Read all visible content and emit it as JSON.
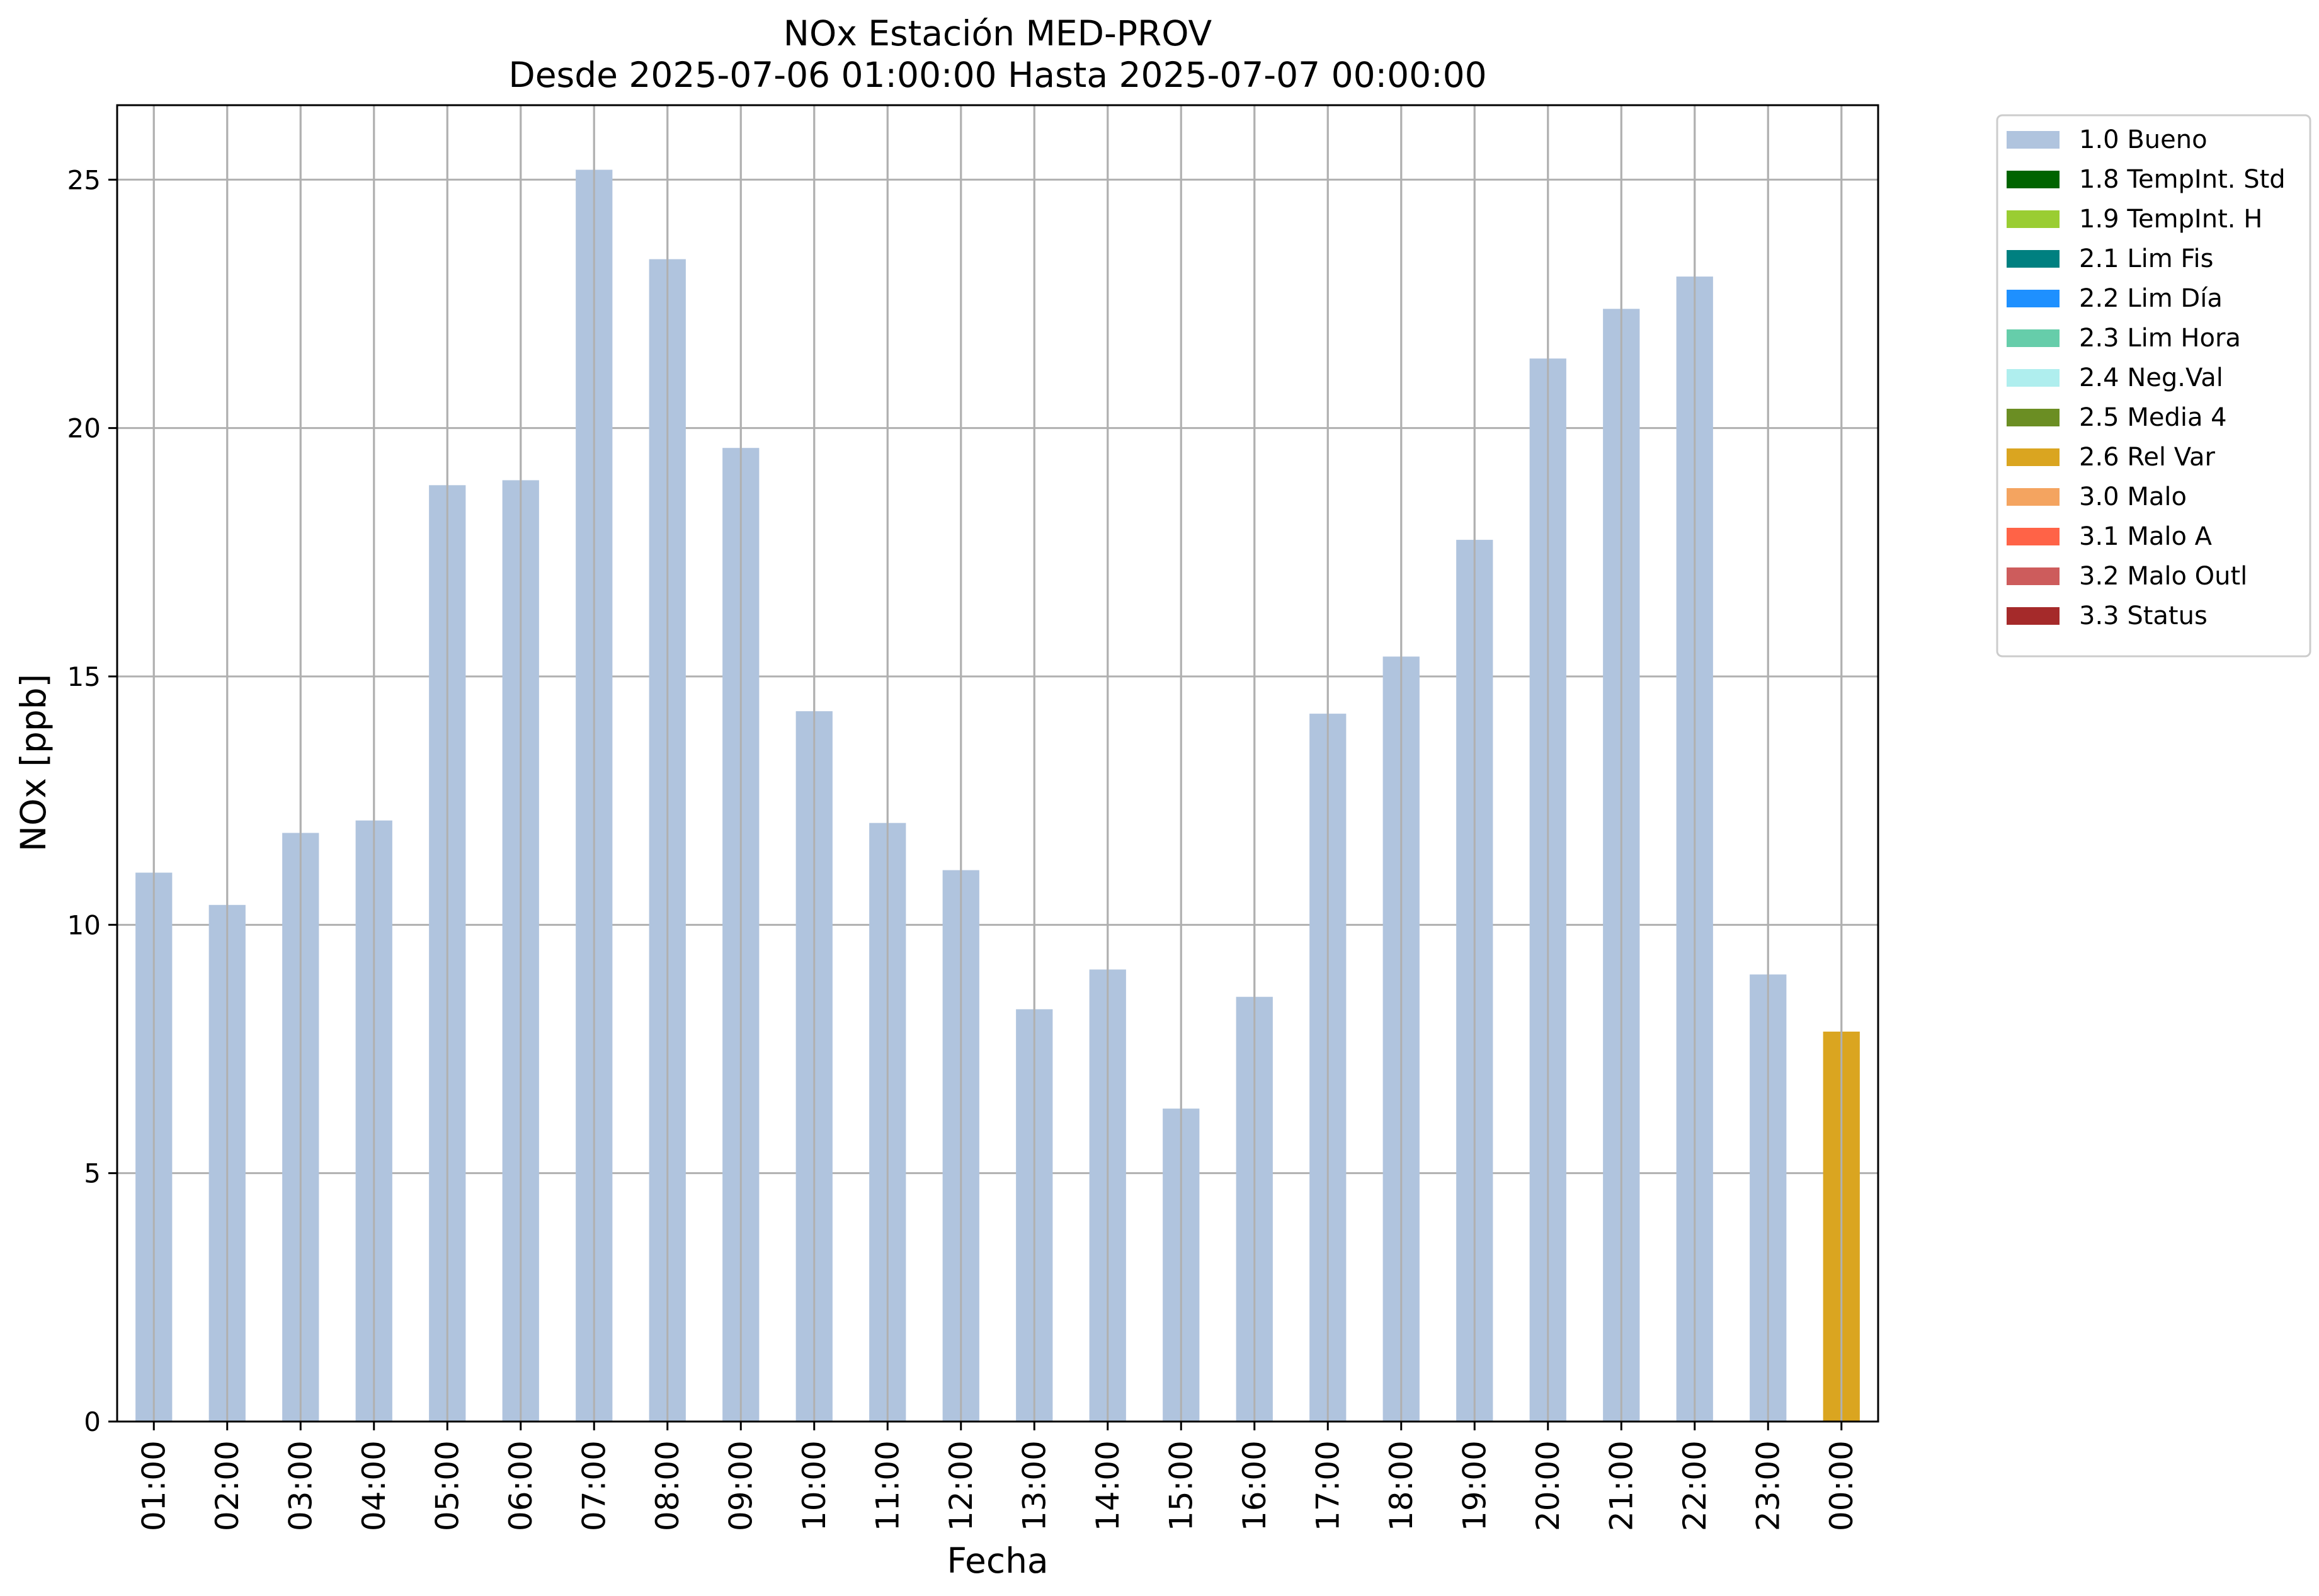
{
  "chart_data": {
    "type": "bar",
    "title": "NOx Estación MED-PROV",
    "subtitle": "Desde 2025-07-06 01:00:00 Hasta 2025-07-07 00:00:00",
    "xlabel": "Fecha",
    "ylabel": "NOx [ppb]",
    "ylim": [
      0,
      26.5
    ],
    "yticks": [
      "0",
      "5",
      "10",
      "15",
      "20",
      "25"
    ],
    "grid": true,
    "legend_position": "outside-top-right",
    "categories": [
      "01:00",
      "02:00",
      "03:00",
      "04:00",
      "05:00",
      "06:00",
      "07:00",
      "08:00",
      "09:00",
      "10:00",
      "11:00",
      "12:00",
      "13:00",
      "14:00",
      "15:00",
      "16:00",
      "17:00",
      "18:00",
      "19:00",
      "20:00",
      "21:00",
      "22:00",
      "23:00",
      "00:00"
    ],
    "values": [
      11.05,
      10.4,
      11.85,
      12.1,
      18.85,
      18.95,
      25.2,
      23.4,
      19.6,
      14.3,
      12.05,
      11.1,
      8.3,
      9.1,
      6.3,
      8.55,
      14.25,
      15.4,
      17.75,
      21.4,
      22.4,
      23.05,
      9.0,
      7.85
    ],
    "flags": [
      "1.0 Bueno",
      "1.0 Bueno",
      "1.0 Bueno",
      "1.0 Bueno",
      "1.0 Bueno",
      "1.0 Bueno",
      "1.0 Bueno",
      "1.0 Bueno",
      "1.0 Bueno",
      "1.0 Bueno",
      "1.0 Bueno",
      "1.0 Bueno",
      "1.0 Bueno",
      "1.0 Bueno",
      "1.0 Bueno",
      "1.0 Bueno",
      "1.0 Bueno",
      "1.0 Bueno",
      "1.0 Bueno",
      "1.0 Bueno",
      "1.0 Bueno",
      "1.0 Bueno",
      "1.0 Bueno",
      "2.6 Rel Var"
    ],
    "legend": [
      {
        "label": "1.0 Bueno",
        "color": "#b0c4de"
      },
      {
        "label": "1.8 TempInt. Std",
        "color": "#006400"
      },
      {
        "label": "1.9 TempInt. H",
        "color": "#9acd32"
      },
      {
        "label": "2.1 Lim Fis",
        "color": "#008080"
      },
      {
        "label": "2.2 Lim Día",
        "color": "#1e90ff"
      },
      {
        "label": "2.3 Lim Hora",
        "color": "#66cdaa"
      },
      {
        "label": "2.4 Neg.Val",
        "color": "#afeeee"
      },
      {
        "label": "2.5 Media 4",
        "color": "#6b8e23"
      },
      {
        "label": "2.6 Rel Var",
        "color": "#daa520"
      },
      {
        "label": "3.0 Malo",
        "color": "#f4a460"
      },
      {
        "label": "3.1 Malo A",
        "color": "#ff6347"
      },
      {
        "label": "3.2 Malo Outl",
        "color": "#cd5c5c"
      },
      {
        "label": "3.3 Status",
        "color": "#a52a2a"
      }
    ]
  }
}
